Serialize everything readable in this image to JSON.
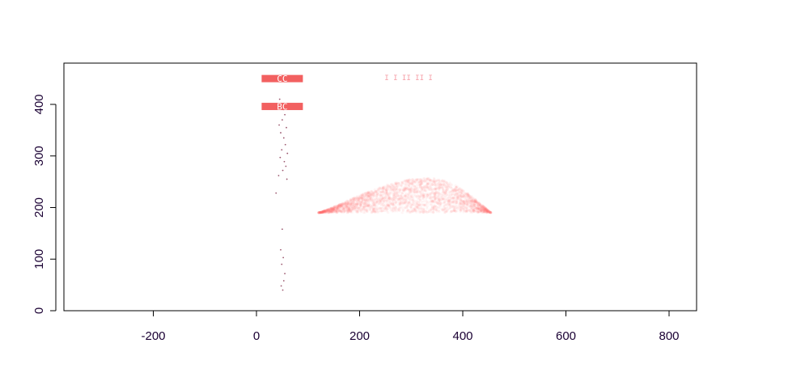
{
  "chart_data": {
    "type": "scatter",
    "title": "",
    "xlabel": "",
    "ylabel": "",
    "xlim": [
      -370,
      850
    ],
    "ylim": [
      -5,
      480
    ],
    "x_ticks": [
      -200,
      0,
      200,
      400,
      600,
      800
    ],
    "y_ticks": [
      0,
      100,
      200,
      300,
      400
    ],
    "x_tick_labels": [
      "-200",
      "0",
      "200",
      "400",
      "600",
      "800"
    ],
    "y_tick_labels": [
      "0",
      "100",
      "200",
      "300",
      "400"
    ],
    "grid": false,
    "legend": "none",
    "colors": {
      "points": "#ff6b6b",
      "dots": "#7a1f3d",
      "bar": "#f26060",
      "axis": "#000000",
      "text": "#1a0033"
    },
    "label_bars": [
      {
        "label": "CC",
        "x_start": 10,
        "x_end": 90,
        "y": 450
      },
      {
        "label": "BC",
        "x_start": 10,
        "x_end": 90,
        "y": 396
      }
    ],
    "annotation": {
      "text": "I  I II II   I",
      "x": 295,
      "y": 452
    },
    "dense_cloud": {
      "description": "point cloud",
      "x_range": [
        120,
        455
      ],
      "base_y": 190,
      "peak_x": 335,
      "peak_y": 257
    },
    "column_points": [
      [
        45,
        410
      ],
      [
        48,
        400
      ],
      [
        52,
        390
      ],
      [
        55,
        380
      ],
      [
        50,
        370
      ],
      [
        44,
        360
      ],
      [
        58,
        355
      ],
      [
        47,
        345
      ],
      [
        53,
        335
      ],
      [
        56,
        322
      ],
      [
        49,
        312
      ],
      [
        60,
        305
      ],
      [
        46,
        297
      ],
      [
        54,
        289
      ],
      [
        57,
        280
      ],
      [
        51,
        272
      ],
      [
        43,
        262
      ],
      [
        59,
        255
      ],
      [
        38,
        228
      ],
      [
        50,
        158
      ],
      [
        47,
        118
      ],
      [
        52,
        103
      ],
      [
        49,
        90
      ],
      [
        55,
        72
      ],
      [
        53,
        58
      ],
      [
        48,
        48
      ],
      [
        51,
        40
      ]
    ]
  }
}
